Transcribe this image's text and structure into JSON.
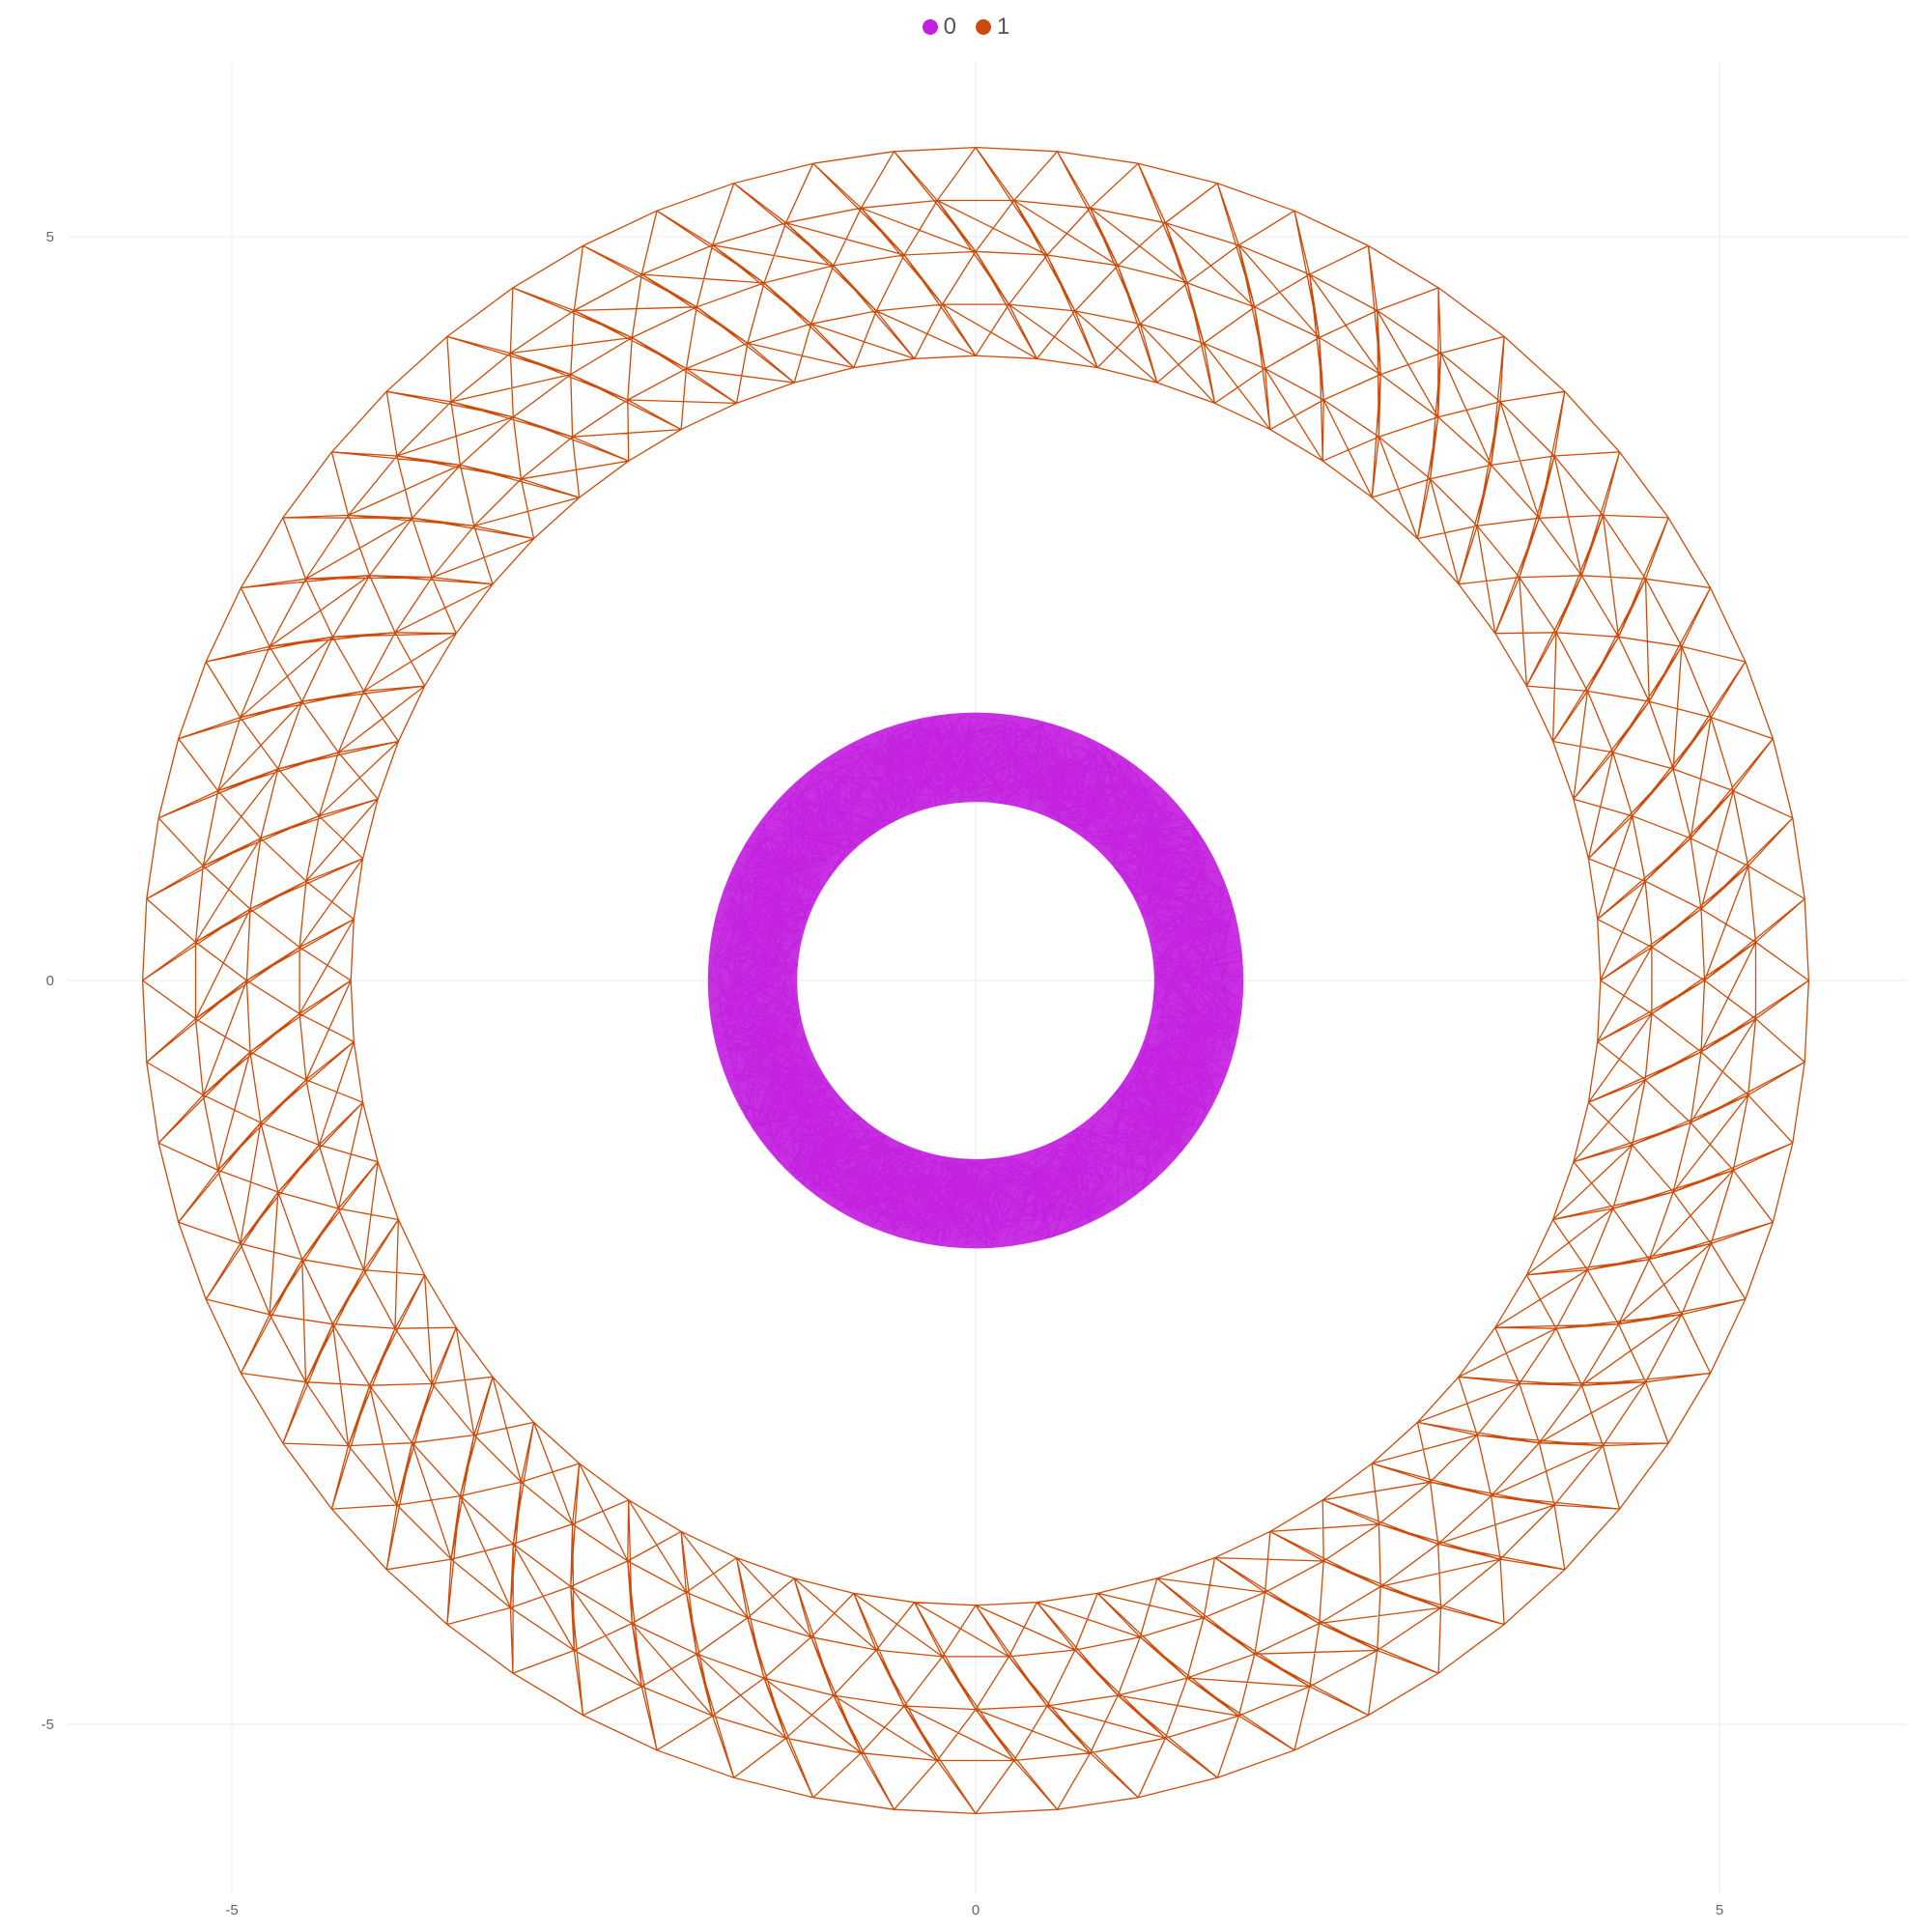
{
  "chart_data": {
    "type": "network",
    "title": "",
    "xlabel": "",
    "ylabel": "",
    "xlim": [
      -6.5,
      6.2
    ],
    "ylim": [
      -6.3,
      6.2
    ],
    "grid": true,
    "x_ticks": [
      -5,
      0,
      5
    ],
    "y_ticks": [
      5,
      0,
      -5
    ],
    "x_tick_labels": [
      "-5",
      "0",
      "5"
    ],
    "y_tick_labels": [
      "5",
      "0",
      "-5"
    ],
    "legend": {
      "position": "top-center"
    },
    "series": [
      {
        "name": "0",
        "color": "#c21fdf",
        "description": "inner annulus mesh (dense, random edges)",
        "r_inner": 1.2,
        "r_outer": 1.8,
        "center": [
          0,
          0
        ]
      },
      {
        "name": "1",
        "color": "#cc4c0c",
        "description": "outer annulus mesh (regular triangulation)",
        "r_inner": 4.2,
        "r_outer": 5.6,
        "center": [
          0,
          0
        ],
        "rings": 5,
        "spokes": 64
      }
    ]
  }
}
